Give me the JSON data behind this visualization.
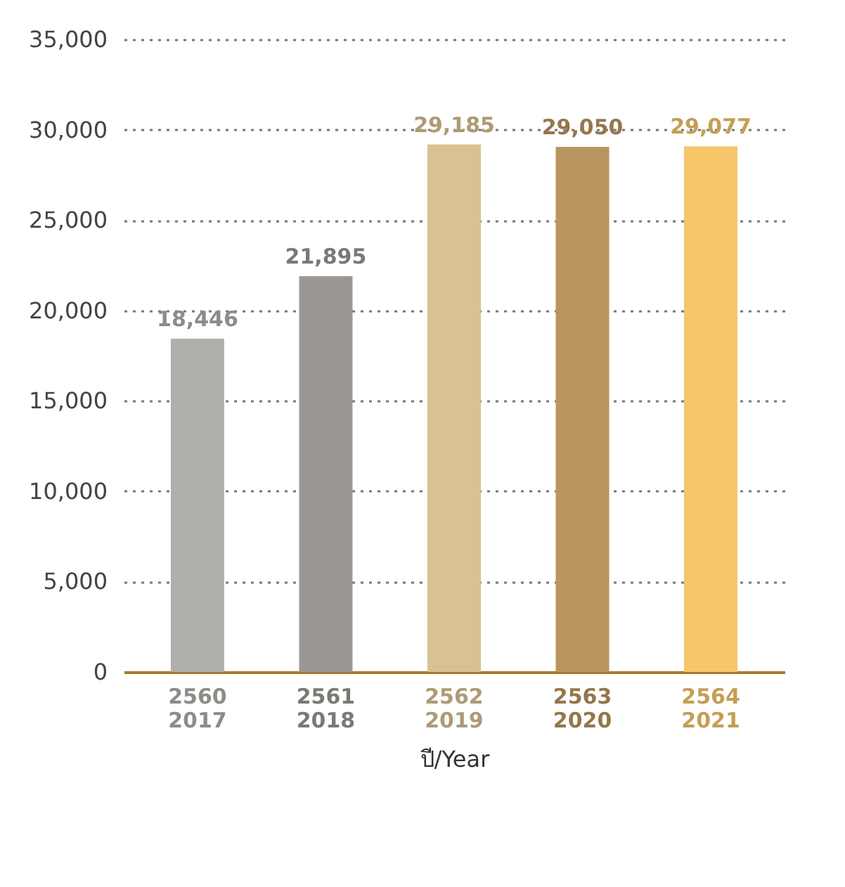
{
  "chart_data": {
    "type": "bar",
    "xlabel": "ปี/Year",
    "categories": [
      "2560\n2017",
      "2561\n2018",
      "2562\n2019",
      "2563\n2020",
      "2564\n2021"
    ],
    "values": [
      18446,
      21895,
      29185,
      29050,
      29077
    ],
    "colors": [
      "#b0afab",
      "#9b9893",
      "#d9c194",
      "#b9955d",
      "#f6c66a"
    ],
    "value_labels": [
      "18,446",
      "21,895",
      "29,185",
      "29,050",
      "29,077"
    ],
    "ylim": [
      0,
      35000
    ],
    "yticks": [
      {
        "value": 0,
        "label": "0"
      },
      {
        "value": 5000,
        "label": "5,000"
      },
      {
        "value": 10000,
        "label": "10,000"
      },
      {
        "value": 15000,
        "label": "15,000"
      },
      {
        "value": 20000,
        "label": "20,000"
      },
      {
        "value": 25000,
        "label": "25,000"
      },
      {
        "value": 30000,
        "label": "30,000"
      },
      {
        "value": 35000,
        "label": "35,000"
      }
    ],
    "grid": "y",
    "legend": false
  }
}
